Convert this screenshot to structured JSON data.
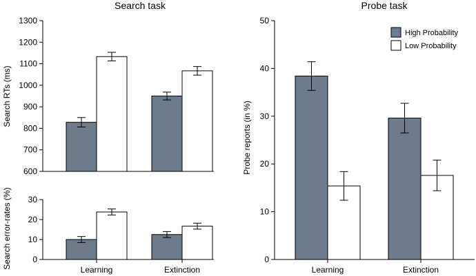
{
  "colors": {
    "high": "#6e7b8b",
    "low": "#ffffff",
    "stroke": "#000000"
  },
  "chart_data": [
    {
      "id": "search-rt",
      "type": "bar",
      "title": "Search task",
      "xlabel": "",
      "ylabel": "Search RTs (ms)",
      "ylim": [
        600,
        1300
      ],
      "yticks": [
        600,
        700,
        800,
        900,
        1000,
        1100,
        1200,
        1300
      ],
      "categories": [
        "Learning",
        "Extinction"
      ],
      "series": [
        {
          "name": "High Probability",
          "values": [
            828,
            950
          ],
          "errors": [
            22,
            18
          ]
        },
        {
          "name": "Low Probability",
          "values": [
            1133,
            1067
          ],
          "errors": [
            20,
            20
          ]
        }
      ]
    },
    {
      "id": "search-error",
      "type": "bar",
      "title": "",
      "xlabel": "",
      "ylabel": "Search error-rates (%)",
      "ylim": [
        0,
        30
      ],
      "yticks": [
        0,
        10,
        20,
        30
      ],
      "categories": [
        "Learning",
        "Extinction"
      ],
      "series": [
        {
          "name": "High Probability",
          "values": [
            10,
            12.5
          ],
          "errors": [
            1.5,
            1.5
          ]
        },
        {
          "name": "Low Probability",
          "values": [
            23.8,
            16.7
          ],
          "errors": [
            1.5,
            1.5
          ]
        }
      ]
    },
    {
      "id": "probe",
      "type": "bar",
      "title": "Probe task",
      "xlabel": "",
      "ylabel": "Probe reports (in %)",
      "ylim": [
        0,
        50
      ],
      "yticks": [
        0,
        10,
        20,
        30,
        40,
        50
      ],
      "legend_position": "top-right",
      "categories": [
        "Learning",
        "Extinction"
      ],
      "series": [
        {
          "name": "High Probability",
          "values": [
            38.4,
            29.6
          ],
          "errors": [
            3.0,
            3.1
          ]
        },
        {
          "name": "Low Probability",
          "values": [
            15.4,
            17.6
          ],
          "errors": [
            3.0,
            3.2
          ]
        }
      ]
    }
  ]
}
